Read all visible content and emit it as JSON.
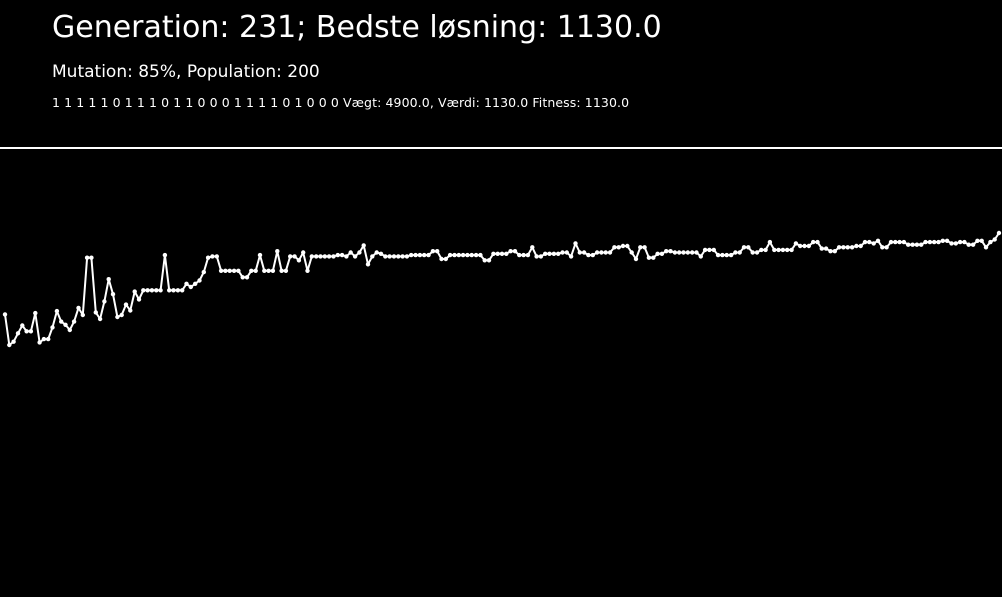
{
  "header": {
    "title": "Generation: 231; Bedste løsning: 1130.0",
    "subtitle": "Mutation: 85%, Population: 200",
    "genome_line": "1 1 1 1 1 0 1 1 1 0 1 1 0 0 0 1 1 1 1 0 1 0 0 0 Vægt: 4900.0, Værdi: 1130.0 Fitness: 1130.0"
  },
  "colors": {
    "background": "#000000",
    "foreground": "#ffffff"
  },
  "chart_data": {
    "type": "line",
    "xlabel": "",
    "ylabel": "",
    "grid": false,
    "legend": "none",
    "x": [
      1,
      231
    ],
    "anchors": [
      [
        1,
        955
      ],
      [
        2,
        908
      ],
      [
        3,
        913
      ],
      [
        4,
        926
      ],
      [
        5,
        938
      ],
      [
        6,
        929
      ],
      [
        7,
        929
      ],
      [
        8,
        957
      ],
      [
        9,
        912
      ],
      [
        10,
        917
      ],
      [
        11,
        917
      ],
      [
        12,
        935
      ],
      [
        13,
        960
      ],
      [
        14,
        944
      ],
      [
        15,
        939
      ],
      [
        16,
        931
      ],
      [
        17,
        944
      ],
      [
        18,
        965
      ],
      [
        19,
        954
      ],
      [
        20,
        1042
      ],
      [
        21,
        1042
      ],
      [
        22,
        958
      ],
      [
        23,
        948
      ],
      [
        24,
        975
      ],
      [
        25,
        1009
      ],
      [
        26,
        986
      ],
      [
        27,
        951
      ],
      [
        28,
        954
      ],
      [
        29,
        970
      ],
      [
        30,
        961
      ],
      [
        31,
        990
      ],
      [
        32,
        978
      ],
      [
        33,
        992
      ],
      [
        34,
        992
      ],
      [
        35,
        992
      ],
      [
        36,
        992
      ],
      [
        37,
        992
      ],
      [
        38,
        1046
      ],
      [
        39,
        992
      ],
      [
        40,
        992
      ],
      [
        41,
        992
      ],
      [
        42,
        992
      ],
      [
        43,
        1002
      ],
      [
        44,
        997
      ],
      [
        45,
        1002
      ],
      [
        46,
        1007
      ],
      [
        47,
        1020
      ],
      [
        48,
        1042
      ],
      [
        49,
        1044
      ],
      [
        50,
        1044
      ],
      [
        51,
        1022
      ],
      [
        52,
        1022
      ],
      [
        53,
        1022
      ],
      [
        54,
        1022
      ],
      [
        55,
        1022
      ],
      [
        56,
        1012
      ],
      [
        57,
        1012
      ],
      [
        58,
        1022
      ],
      [
        59,
        1022
      ],
      [
        60,
        1046
      ],
      [
        61,
        1022
      ],
      [
        62,
        1022
      ],
      [
        63,
        1022
      ],
      [
        64,
        1052
      ],
      [
        65,
        1022
      ],
      [
        66,
        1022
      ],
      [
        67,
        1044
      ],
      [
        68,
        1044
      ],
      [
        69,
        1038
      ],
      [
        70,
        1050
      ],
      [
        71,
        1022
      ],
      [
        72,
        1044
      ],
      [
        73,
        1044
      ],
      [
        74,
        1044
      ],
      [
        75,
        1044
      ],
      [
        76,
        1044
      ],
      [
        77,
        1044
      ],
      [
        78,
        1046
      ],
      [
        79,
        1046
      ],
      [
        80,
        1044
      ],
      [
        81,
        1050
      ],
      [
        82,
        1044
      ],
      [
        83,
        1050
      ],
      [
        84,
        1061
      ],
      [
        85,
        1032
      ],
      [
        86,
        1044
      ],
      [
        87,
        1050
      ],
      [
        88,
        1048
      ],
      [
        89,
        1044
      ],
      [
        90,
        1044
      ],
      [
        95,
        1046
      ],
      [
        100,
        1052
      ],
      [
        102,
        1040
      ],
      [
        104,
        1046
      ],
      [
        110,
        1046
      ],
      [
        112,
        1038
      ],
      [
        114,
        1048
      ],
      [
        118,
        1052
      ],
      [
        120,
        1046
      ],
      [
        123,
        1058
      ],
      [
        124,
        1044
      ],
      [
        126,
        1048
      ],
      [
        130,
        1050
      ],
      [
        132,
        1044
      ],
      [
        133,
        1064
      ],
      [
        134,
        1050
      ],
      [
        136,
        1046
      ],
      [
        138,
        1050
      ],
      [
        142,
        1058
      ],
      [
        144,
        1060
      ],
      [
        146,
        1050
      ],
      [
        147,
        1040
      ],
      [
        148,
        1058
      ],
      [
        149,
        1058
      ],
      [
        150,
        1042
      ],
      [
        152,
        1048
      ],
      [
        154,
        1052
      ],
      [
        156,
        1050
      ],
      [
        160,
        1050
      ],
      [
        162,
        1044
      ],
      [
        163,
        1054
      ],
      [
        166,
        1046
      ],
      [
        170,
        1050
      ],
      [
        172,
        1058
      ],
      [
        174,
        1050
      ],
      [
        176,
        1054
      ],
      [
        178,
        1066
      ],
      [
        179,
        1054
      ],
      [
        182,
        1054
      ],
      [
        184,
        1064
      ],
      [
        185,
        1060
      ],
      [
        188,
        1066
      ],
      [
        190,
        1056
      ],
      [
        192,
        1052
      ],
      [
        194,
        1058
      ],
      [
        198,
        1060
      ],
      [
        200,
        1066
      ],
      [
        202,
        1064
      ],
      [
        203,
        1068
      ],
      [
        204,
        1058
      ],
      [
        206,
        1066
      ],
      [
        208,
        1066
      ],
      [
        210,
        1062
      ],
      [
        214,
        1066
      ],
      [
        218,
        1068
      ],
      [
        220,
        1064
      ],
      [
        222,
        1066
      ],
      [
        224,
        1062
      ],
      [
        226,
        1068
      ],
      [
        228,
        1058
      ],
      [
        229,
        1066
      ],
      [
        230,
        1070
      ],
      [
        231,
        1080
      ]
    ]
  }
}
